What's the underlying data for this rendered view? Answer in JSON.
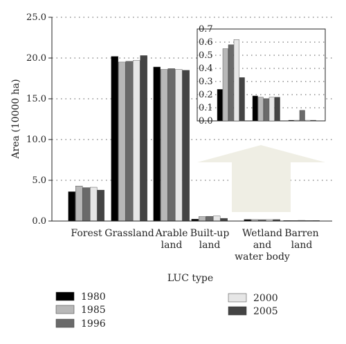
{
  "chart_data": {
    "type": "bar",
    "ylabel": "Area (10000 ha)",
    "xlabel": "LUC type",
    "ylim": [
      0,
      25
    ],
    "yticks": [
      "0.0",
      "5.0",
      "10.0",
      "15.0",
      "20.0",
      "25.0"
    ],
    "grid": "horizontal dotted",
    "legend_position": "bottom",
    "categories": [
      [
        "Forest"
      ],
      [
        "Grassland"
      ],
      [
        "Arable",
        "land"
      ],
      [
        "Built-up",
        "land"
      ],
      [
        "Wetland",
        "and",
        "water body"
      ],
      [
        "Barren",
        "land"
      ]
    ],
    "series": [
      {
        "name": "1980",
        "color": "#000000",
        "values": [
          3.6,
          20.2,
          18.9,
          0.24,
          0.19,
          0.005
        ]
      },
      {
        "name": "1985",
        "color": "#b8b8b8",
        "values": [
          4.3,
          19.5,
          18.6,
          0.55,
          0.18,
          0.005
        ]
      },
      {
        "name": "1996",
        "color": "#6a6a6a",
        "values": [
          4.1,
          19.6,
          18.7,
          0.58,
          0.17,
          0.08
        ]
      },
      {
        "name": "2000",
        "color": "#e6e6e6",
        "values": [
          4.15,
          19.7,
          18.6,
          0.62,
          0.18,
          0.005
        ]
      },
      {
        "name": "2005",
        "color": "#444444",
        "values": [
          3.8,
          20.3,
          18.5,
          0.33,
          0.18,
          0.005
        ]
      }
    ],
    "inset": {
      "ylim": [
        0,
        0.7
      ],
      "yticks": [
        "0.0",
        "0.1",
        "0.2",
        "0.3",
        "0.4",
        "0.5",
        "0.6",
        "0.7"
      ],
      "category_indices": [
        3,
        4,
        5
      ],
      "arrow_color": "#efeee4"
    }
  }
}
